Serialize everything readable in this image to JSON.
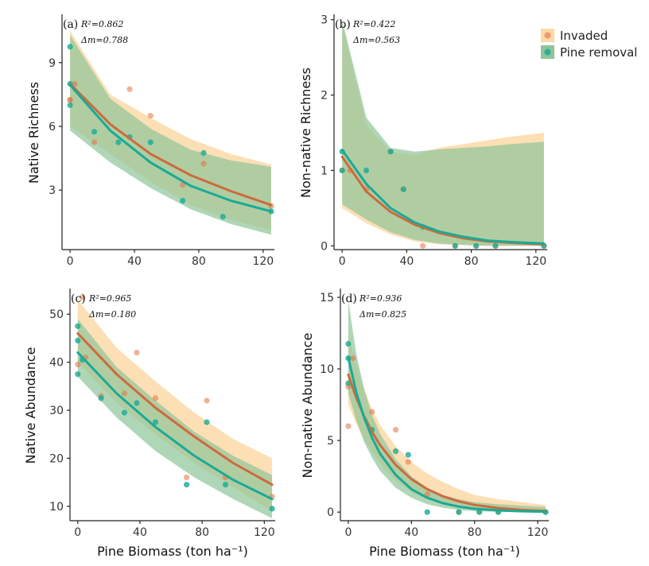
{
  "colors": {
    "invaded": "#e8703f",
    "invaded_band": "#fdd9a8",
    "pine_removal": "#1aaa96",
    "pine_removal_band": "#8ec49a"
  },
  "legend": {
    "invaded": "Invaded",
    "pine_removal": "Pine removal"
  },
  "chart_data": [
    {
      "type": "scatter",
      "tag": "(a)",
      "r2": "R²=0.862",
      "dm": "Δm=0.788",
      "xlabel": "",
      "ylabel": "Native Richness",
      "xlim": [
        -5,
        127
      ],
      "ylim": [
        0.2,
        11.2
      ],
      "xticks": [
        0,
        40,
        80,
        120
      ],
      "yticks": [
        3,
        6,
        9
      ],
      "xtick_labels": [
        "0",
        "40",
        "80",
        "120"
      ],
      "ytick_labels": [
        "3",
        "6",
        "9"
      ],
      "series": [
        {
          "name": "Invaded",
          "fit_x": [
            0,
            25,
            50,
            75,
            100,
            125
          ],
          "fit_y": [
            8.0,
            6.1,
            4.7,
            3.7,
            2.95,
            2.3
          ],
          "band_lo": [
            6.0,
            4.7,
            3.4,
            2.3,
            1.6,
            1.1
          ],
          "band_hi": [
            10.5,
            7.5,
            6.4,
            5.4,
            4.7,
            4.2
          ],
          "points": [
            [
              0,
              7.25
            ],
            [
              0,
              7.25
            ],
            [
              3,
              8.0
            ],
            [
              15,
              5.25
            ],
            [
              37,
              7.75
            ],
            [
              50,
              6.5
            ],
            [
              70,
              3.25
            ],
            [
              83,
              4.25
            ],
            [
              125,
              2.25
            ]
          ]
        },
        {
          "name": "Pine removal",
          "fit_x": [
            0,
            25,
            50,
            75,
            100,
            125
          ],
          "fit_y": [
            7.95,
            5.8,
            4.3,
            3.2,
            2.5,
            2.0
          ],
          "band_lo": [
            5.8,
            4.3,
            3.1,
            2.1,
            1.4,
            0.9
          ],
          "band_hi": [
            10.3,
            7.3,
            5.9,
            4.9,
            4.4,
            4.1
          ],
          "points": [
            [
              0,
              9.75
            ],
            [
              0,
              8.0
            ],
            [
              0,
              7.0
            ],
            [
              15,
              5.75
            ],
            [
              30,
              5.25
            ],
            [
              37,
              5.5
            ],
            [
              50,
              5.25
            ],
            [
              70,
              2.5
            ],
            [
              83,
              4.75
            ],
            [
              95,
              1.75
            ],
            [
              125,
              2.0
            ]
          ]
        }
      ]
    },
    {
      "type": "scatter",
      "tag": "(b)",
      "r2": "R²=0.422",
      "dm": "Δm=0.563",
      "xlabel": "",
      "ylabel": "Non-native Richness",
      "xlim": [
        -5,
        127
      ],
      "ylim": [
        -0.05,
        3.05
      ],
      "xticks": [
        0,
        40,
        80,
        120
      ],
      "yticks": [
        0,
        1,
        2,
        3
      ],
      "xtick_labels": [
        "0",
        "40",
        "80",
        "120"
      ],
      "ytick_labels": [
        "0",
        "1",
        "2",
        "3"
      ],
      "series": [
        {
          "name": "Invaded",
          "fit_x": [
            0,
            15,
            30,
            45,
            60,
            75,
            90,
            105,
            125
          ],
          "fit_y": [
            1.18,
            0.72,
            0.45,
            0.28,
            0.17,
            0.1,
            0.06,
            0.04,
            0.02
          ],
          "band_lo": [
            0.5,
            0.3,
            0.15,
            0.06,
            0.02,
            0.01,
            0.0,
            0.0,
            0.0
          ],
          "band_hi": [
            2.95,
            1.6,
            1.25,
            1.2,
            1.3,
            1.35,
            1.4,
            1.45,
            1.5
          ],
          "points": [
            [
              0,
              1.0
            ],
            [
              5,
              1.0
            ],
            [
              15,
              0.75
            ],
            [
              30,
              1.25
            ],
            [
              38,
              0.75
            ],
            [
              50,
              0.0
            ],
            [
              70,
              0.0
            ],
            [
              83,
              0.0
            ],
            [
              95,
              0.0
            ],
            [
              125,
              0.0
            ]
          ]
        },
        {
          "name": "Pine removal",
          "fit_x": [
            0,
            15,
            30,
            45,
            60,
            75,
            90,
            105,
            125
          ],
          "fit_y": [
            1.27,
            0.82,
            0.5,
            0.31,
            0.19,
            0.12,
            0.07,
            0.05,
            0.03
          ],
          "band_lo": [
            0.55,
            0.35,
            0.18,
            0.08,
            0.03,
            0.01,
            0.0,
            0.0,
            0.0
          ],
          "band_hi": [
            3.0,
            1.7,
            1.3,
            1.25,
            1.28,
            1.3,
            1.32,
            1.35,
            1.38
          ],
          "points": [
            [
              0,
              1.25
            ],
            [
              0,
              1.0
            ],
            [
              15,
              1.0
            ],
            [
              30,
              1.25
            ],
            [
              38,
              0.75
            ],
            [
              50,
              0.25
            ],
            [
              70,
              0.0
            ],
            [
              83,
              0.0
            ],
            [
              95,
              0.0
            ],
            [
              125,
              0.0
            ]
          ]
        }
      ]
    },
    {
      "type": "scatter",
      "tag": "(c)",
      "r2": "R²=0.965",
      "dm": "Δm=0.180",
      "xlabel": "Pine Biomass (ton ha⁻¹)",
      "ylabel": "Native Abundance",
      "xlim": [
        -5,
        127
      ],
      "ylim": [
        7,
        55
      ],
      "xticks": [
        0,
        40,
        80,
        120
      ],
      "yticks": [
        10,
        20,
        30,
        40,
        50
      ],
      "xtick_labels": [
        "0",
        "40",
        "80",
        "120"
      ],
      "ytick_labels": [
        "10",
        "20",
        "30",
        "40",
        "50"
      ],
      "series": [
        {
          "name": "Invaded",
          "fit_x": [
            0,
            25,
            50,
            75,
            100,
            125
          ],
          "fit_y": [
            46.0,
            37.5,
            30.5,
            24.5,
            19.0,
            14.5
          ],
          "band_lo": [
            40.0,
            31.5,
            25.0,
            19.0,
            14.0,
            9.0
          ],
          "band_hi": [
            53.0,
            43.0,
            36.0,
            29.5,
            24.0,
            20.0
          ],
          "points": [
            [
              0,
              39.5
            ],
            [
              3,
              53.5
            ],
            [
              5,
              41.0
            ],
            [
              15,
              33.0
            ],
            [
              30,
              33.5
            ],
            [
              38,
              42.0
            ],
            [
              50,
              32.5
            ],
            [
              70,
              16.0
            ],
            [
              83,
              32.0
            ],
            [
              95,
              16.0
            ],
            [
              125,
              12.0
            ]
          ]
        },
        {
          "name": "Pine removal",
          "fit_x": [
            0,
            25,
            50,
            75,
            100,
            125
          ],
          "fit_y": [
            42.0,
            33.5,
            26.5,
            20.5,
            15.5,
            11.5
          ],
          "band_lo": [
            37.0,
            28.5,
            21.5,
            16.0,
            11.5,
            7.5
          ],
          "band_hi": [
            49.0,
            39.0,
            32.0,
            25.5,
            20.5,
            16.5
          ],
          "points": [
            [
              0,
              47.5
            ],
            [
              0,
              44.5
            ],
            [
              0,
              37.5
            ],
            [
              3,
              40.5
            ],
            [
              15,
              32.5
            ],
            [
              30,
              29.5
            ],
            [
              38,
              31.5
            ],
            [
              50,
              27.5
            ],
            [
              70,
              14.5
            ],
            [
              83,
              27.5
            ],
            [
              95,
              14.5
            ],
            [
              125,
              9.5
            ]
          ]
        }
      ]
    },
    {
      "type": "scatter",
      "tag": "(d)",
      "r2": "R²=0.936",
      "dm": "Δm=0.825",
      "xlabel": "Pine Biomass (ton ha⁻¹)",
      "ylabel": "Non-native Abundance",
      "xlim": [
        -5,
        127
      ],
      "ylim": [
        -0.6,
        15.5
      ],
      "xticks": [
        0,
        40,
        80,
        120
      ],
      "yticks": [
        0,
        5,
        10,
        15
      ],
      "xtick_labels": [
        "0",
        "40",
        "80",
        "120"
      ],
      "ytick_labels": [
        "0",
        "5",
        "10",
        "15"
      ],
      "series": [
        {
          "name": "Invaded",
          "fit_x": [
            0,
            5,
            10,
            15,
            20,
            30,
            40,
            50,
            60,
            70,
            80,
            95,
            110,
            125
          ],
          "fit_y": [
            9.6,
            8.0,
            6.7,
            5.6,
            4.7,
            3.3,
            2.3,
            1.6,
            1.1,
            0.75,
            0.5,
            0.28,
            0.15,
            0.08
          ],
          "band_lo": [
            7.5,
            6.2,
            5.1,
            4.2,
            3.4,
            2.2,
            1.4,
            0.9,
            0.5,
            0.3,
            0.15,
            0.05,
            0.0,
            0.0
          ],
          "band_hi": [
            12.5,
            10.3,
            8.6,
            7.2,
            6.1,
            4.6,
            3.5,
            2.7,
            2.1,
            1.6,
            1.2,
            0.9,
            0.7,
            0.5
          ],
          "points": [
            [
              0,
              6.0
            ],
            [
              0,
              8.75
            ],
            [
              3,
              10.75
            ],
            [
              15,
              7.0
            ],
            [
              30,
              5.75
            ],
            [
              38,
              3.5
            ],
            [
              50,
              1.25
            ],
            [
              70,
              0.0
            ],
            [
              83,
              0.0
            ],
            [
              95,
              0.0
            ],
            [
              125,
              0.0
            ]
          ]
        },
        {
          "name": "Pine removal",
          "fit_x": [
            0,
            5,
            10,
            15,
            20,
            30,
            40,
            50,
            60,
            70,
            80,
            95,
            110,
            125
          ],
          "fit_y": [
            10.8,
            8.4,
            6.6,
            5.2,
            4.1,
            2.6,
            1.6,
            1.0,
            0.62,
            0.38,
            0.23,
            0.12,
            0.06,
            0.03
          ],
          "band_lo": [
            8.3,
            6.4,
            4.9,
            3.8,
            2.9,
            1.7,
            1.0,
            0.55,
            0.3,
            0.15,
            0.06,
            0.02,
            0.0,
            0.0
          ],
          "band_hi": [
            14.8,
            11.1,
            8.6,
            6.8,
            5.5,
            3.7,
            2.5,
            1.7,
            1.2,
            0.9,
            0.7,
            0.55,
            0.45,
            0.35
          ],
          "points": [
            [
              0,
              11.75
            ],
            [
              0,
              10.75
            ],
            [
              0,
              9.0
            ],
            [
              15,
              5.75
            ],
            [
              30,
              4.25
            ],
            [
              38,
              4.0
            ],
            [
              50,
              0.0
            ],
            [
              70,
              0.0
            ],
            [
              83,
              0.0
            ],
            [
              95,
              0.0
            ],
            [
              125,
              0.0
            ]
          ]
        }
      ]
    }
  ]
}
